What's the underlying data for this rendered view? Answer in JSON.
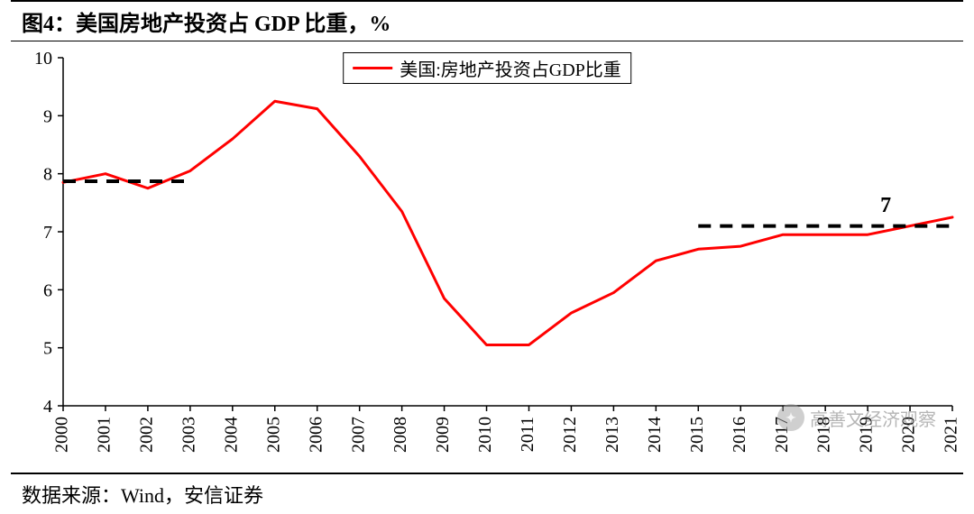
{
  "title": "图4：美国房地产投资占 GDP 比重，%",
  "source": "数据来源：Wind，安信证券",
  "legend_label": "美国:房地产投资占GDP比重",
  "watermark_text": "高善文经济观察",
  "chart": {
    "type": "line",
    "line_color": "#ff0000",
    "line_width": 3,
    "dash_color": "#000000",
    "dash_width": 4,
    "axis_color": "#000000",
    "background": "#ffffff",
    "ylim": [
      4,
      10
    ],
    "ytick_step": 1,
    "yticks": [
      4,
      5,
      6,
      7,
      8,
      9,
      10
    ],
    "years": [
      "2000",
      "2001",
      "2002",
      "2003",
      "2004",
      "2005",
      "2006",
      "2007",
      "2008",
      "2009",
      "2010",
      "2011",
      "2012",
      "2013",
      "2014",
      "2015",
      "2016",
      "2017",
      "2018",
      "2019",
      "2020",
      "2021"
    ],
    "values": [
      7.85,
      8.0,
      7.75,
      8.05,
      8.6,
      9.25,
      9.12,
      8.3,
      7.35,
      5.85,
      5.05,
      5.05,
      5.6,
      5.95,
      6.5,
      6.7,
      6.75,
      6.95,
      6.95,
      6.95,
      7.1,
      7.25
    ],
    "ref_lines": [
      {
        "x_start_year": "2000",
        "x_end_year": "2003",
        "y": 7.87
      },
      {
        "x_start_year": "2015",
        "x_end_year": "2021",
        "y": 7.1
      }
    ],
    "annotation": {
      "text": "7",
      "x_year": "2019",
      "y": 7.25
    },
    "title_fontsize": 24,
    "label_fontsize": 20
  }
}
